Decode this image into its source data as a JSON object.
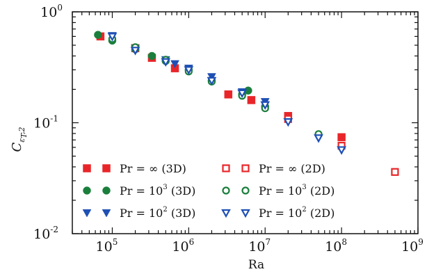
{
  "chart_data": {
    "type": "scatter",
    "xlabel": "Ra",
    "ylabel": "C",
    "ylabel_sub": "ε",
    "ylabel_sub2": "T",
    "ylabel_sub3": ",2",
    "xscale": "log",
    "yscale": "log",
    "xlim": [
      30000,
      1000000000
    ],
    "ylim": [
      0.01,
      1.0
    ],
    "x_ticks": [
      {
        "base": "10",
        "exp": "5",
        "value": 100000
      },
      {
        "base": "10",
        "exp": "6",
        "value": 1000000
      },
      {
        "base": "10",
        "exp": "7",
        "value": 10000000
      },
      {
        "base": "10",
        "exp": "8",
        "value": 100000000
      },
      {
        "base": "10",
        "exp": "9",
        "value": 1000000000
      }
    ],
    "y_ticks": [
      {
        "base": "10",
        "exp": "-2",
        "value": 0.01
      },
      {
        "base": "10",
        "exp": "-1",
        "value": 0.1
      },
      {
        "base": "10",
        "exp": "0",
        "value": 1.0
      }
    ],
    "grid": false,
    "legend_position": "lower-left",
    "series": [
      {
        "name": "Pr = ∞ (3D)",
        "label_pre": "Pr = ∞",
        "label_sup": "",
        "label_post": " (3D)",
        "marker": "square",
        "filled": true,
        "color": "#e8262a",
        "points": [
          [
            70000,
            0.6
          ],
          [
            200000,
            0.47
          ],
          [
            330000,
            0.385
          ],
          [
            660000,
            0.31
          ],
          [
            3300000,
            0.18
          ],
          [
            6600000,
            0.16
          ],
          [
            20000000,
            0.115
          ],
          [
            100000000,
            0.074
          ]
        ]
      },
      {
        "name": "Pr = 10^3 (3D)",
        "label_pre": "Pr = 10",
        "label_sup": "3",
        "label_post": " (3D)",
        "marker": "circle",
        "filled": true,
        "color": "#1a7f3c",
        "points": [
          [
            65000,
            0.62
          ],
          [
            100000,
            0.55
          ],
          [
            200000,
            0.46
          ],
          [
            330000,
            0.4
          ],
          [
            500000,
            0.36
          ],
          [
            1000000,
            0.3
          ],
          [
            2000000,
            0.24
          ],
          [
            5000000,
            0.18
          ],
          [
            6000000,
            0.195
          ],
          [
            10000000,
            0.14
          ]
        ]
      },
      {
        "name": "Pr = 10^2 (3D)",
        "label_pre": "Pr = 10",
        "label_sup": "2",
        "label_post": " (3D)",
        "marker": "triangle-down",
        "filled": true,
        "color": "#1f50b4",
        "points": [
          [
            100000,
            0.61
          ],
          [
            200000,
            0.47
          ],
          [
            500000,
            0.37
          ],
          [
            660000,
            0.34
          ],
          [
            1000000,
            0.31
          ],
          [
            2000000,
            0.26
          ],
          [
            5000000,
            0.19
          ],
          [
            10000000,
            0.155
          ]
        ]
      },
      {
        "name": "Pr = ∞ (2D)",
        "label_pre": "Pr = ∞",
        "label_sup": "",
        "label_post": " (2D)",
        "marker": "square",
        "filled": false,
        "color": "#e8262a",
        "points": [
          [
            20000000,
            0.108
          ],
          [
            100000000,
            0.062
          ],
          [
            500000000,
            0.036
          ]
        ]
      },
      {
        "name": "Pr = 10^3 (2D)",
        "label_pre": "Pr = 10",
        "label_sup": "3",
        "label_post": " (2D)",
        "marker": "circle",
        "filled": false,
        "color": "#1a7f3c",
        "points": [
          [
            100000,
            0.57
          ],
          [
            200000,
            0.48
          ],
          [
            500000,
            0.37
          ],
          [
            1000000,
            0.29
          ],
          [
            2000000,
            0.235
          ],
          [
            5000000,
            0.175
          ],
          [
            10000000,
            0.135
          ],
          [
            50000000,
            0.079
          ]
        ]
      },
      {
        "name": "Pr = 10^2 (2D)",
        "label_pre": "Pr = 10",
        "label_sup": "2",
        "label_post": " (2D)",
        "marker": "triangle-down",
        "filled": false,
        "color": "#1f50b4",
        "points": [
          [
            100000,
            0.6
          ],
          [
            200000,
            0.45
          ],
          [
            500000,
            0.355
          ],
          [
            1000000,
            0.3
          ],
          [
            2000000,
            0.24
          ],
          [
            5000000,
            0.185
          ],
          [
            10000000,
            0.145
          ],
          [
            20000000,
            0.102
          ],
          [
            50000000,
            0.073
          ],
          [
            100000000,
            0.057
          ]
        ]
      }
    ]
  }
}
